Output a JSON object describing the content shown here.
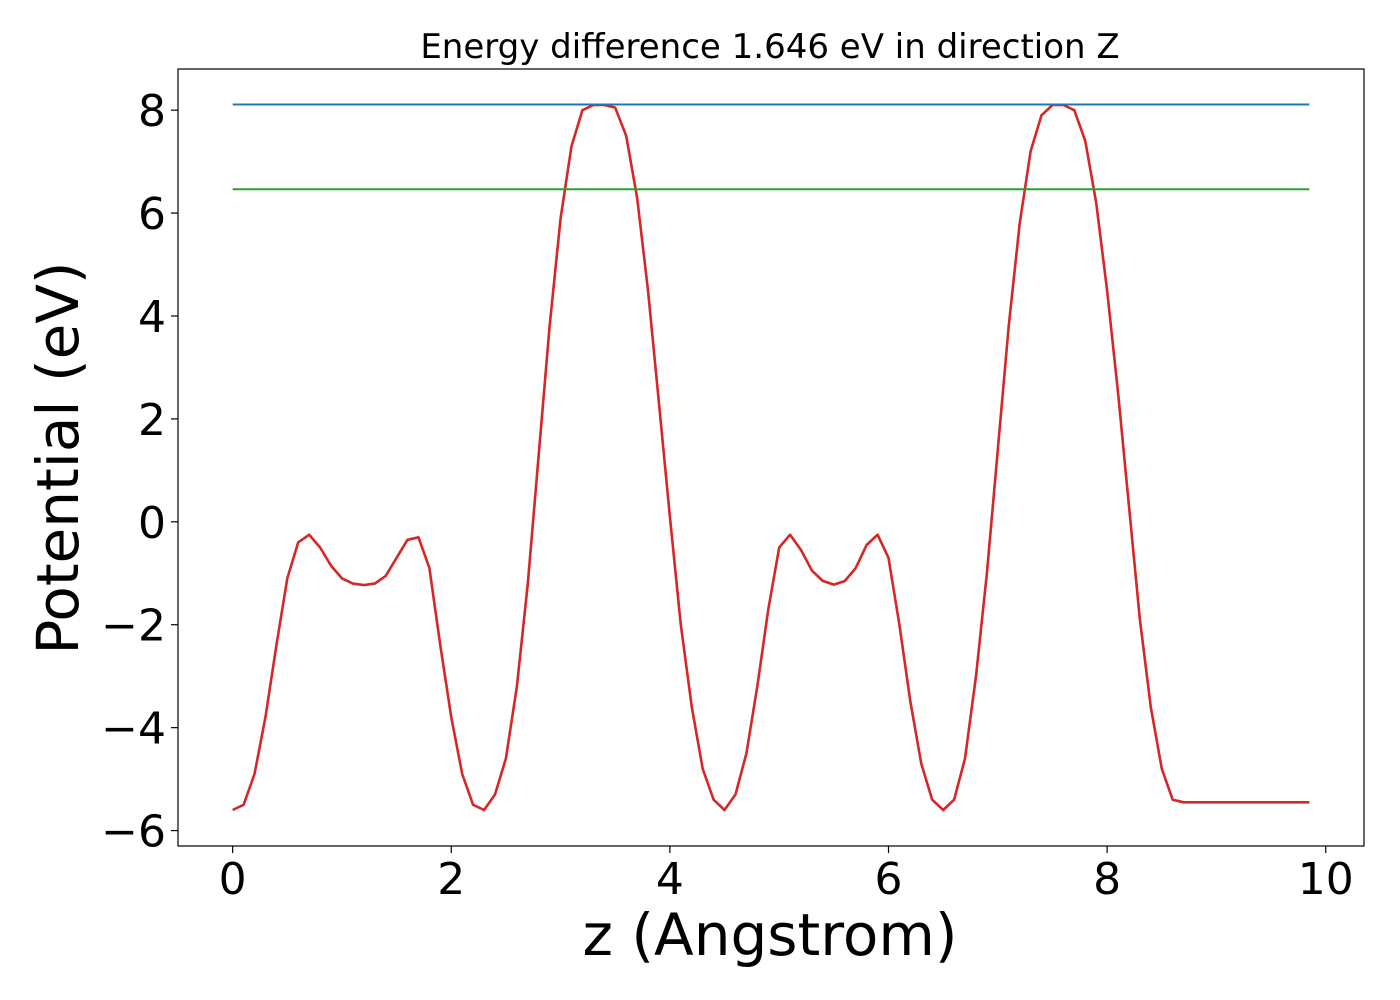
{
  "chart_data": {
    "type": "line",
    "title": "Energy difference 1.646 eV in direction Z",
    "xlabel": "z (Angstrom)",
    "ylabel": "Potential (eV)",
    "xlim": [
      -0.5,
      10.35
    ],
    "ylim": [
      -6.3,
      8.8
    ],
    "xticks": [
      0,
      2,
      4,
      6,
      8,
      10
    ],
    "yticks": [
      -6,
      -4,
      -2,
      0,
      2,
      4,
      6,
      8
    ],
    "xtick_labels": [
      "0",
      "2",
      "4",
      "6",
      "8",
      "10"
    ],
    "ytick_labels": [
      "−6",
      "−4",
      "−2",
      "0",
      "2",
      "4",
      "6",
      "8"
    ],
    "grid": false,
    "series": [
      {
        "color": "#d62728",
        "x": [
          0.0,
          0.1,
          0.2,
          0.3,
          0.4,
          0.5,
          0.6,
          0.7,
          0.8,
          0.9,
          1.0,
          1.1,
          1.2,
          1.3,
          1.4,
          1.5,
          1.6,
          1.7,
          1.8,
          1.9,
          2.0,
          2.1,
          2.2,
          2.3,
          2.4,
          2.5,
          2.6,
          2.7,
          2.8,
          2.9,
          3.0,
          3.1,
          3.2,
          3.3,
          3.4,
          3.5,
          3.6,
          3.7,
          3.8,
          3.9,
          4.0,
          4.1,
          4.2,
          4.3,
          4.4,
          4.5,
          4.6,
          4.7,
          4.8,
          4.9,
          5.0,
          5.1,
          5.2,
          5.3,
          5.4,
          5.5,
          5.6,
          5.7,
          5.8,
          5.9,
          6.0,
          6.1,
          6.2,
          6.3,
          6.4,
          6.5,
          6.6,
          6.7,
          6.8,
          6.9,
          7.0,
          7.1,
          7.2,
          7.3,
          7.4,
          7.5,
          7.6,
          7.7,
          7.8,
          7.9,
          8.0,
          8.1,
          8.2,
          8.3,
          8.4,
          8.5,
          8.6,
          8.7,
          8.8,
          8.9,
          9.0,
          9.1,
          9.2,
          9.3,
          9.4,
          9.5,
          9.6,
          9.7,
          9.8,
          9.85
        ],
        "y": [
          -5.6,
          -5.5,
          -4.9,
          -3.8,
          -2.4,
          -1.1,
          -0.4,
          -0.25,
          -0.5,
          -0.85,
          -1.1,
          -1.2,
          -1.23,
          -1.2,
          -1.05,
          -0.7,
          -0.35,
          -0.3,
          -0.9,
          -2.4,
          -3.8,
          -4.9,
          -5.5,
          -5.6,
          -5.3,
          -4.6,
          -3.2,
          -1.2,
          1.3,
          3.8,
          5.9,
          7.3,
          8.0,
          8.1,
          8.1,
          8.05,
          7.5,
          6.3,
          4.5,
          2.3,
          0.1,
          -2.0,
          -3.6,
          -4.8,
          -5.4,
          -5.6,
          -5.3,
          -4.5,
          -3.2,
          -1.7,
          -0.5,
          -0.25,
          -0.55,
          -0.95,
          -1.15,
          -1.22,
          -1.15,
          -0.9,
          -0.45,
          -0.25,
          -0.7,
          -2.0,
          -3.5,
          -4.7,
          -5.4,
          -5.6,
          -5.4,
          -4.6,
          -3.0,
          -1.0,
          1.4,
          3.8,
          5.8,
          7.2,
          7.9,
          8.1,
          8.1,
          8.0,
          7.4,
          6.2,
          4.5,
          2.5,
          0.3,
          -1.9,
          -3.6,
          -4.8,
          -5.4,
          -5.45,
          -5.45,
          -5.45,
          -5.45,
          -5.45,
          -5.45,
          -5.45,
          -5.45,
          -5.45,
          -5.45,
          -5.45,
          -5.45,
          -5.45
        ]
      },
      {
        "color": "#1f77b4",
        "x": [
          0.0,
          9.85
        ],
        "y": [
          8.11,
          8.11
        ]
      },
      {
        "color": "#2ca02c",
        "x": [
          0.0,
          9.85
        ],
        "y": [
          6.464,
          6.464
        ]
      }
    ]
  }
}
